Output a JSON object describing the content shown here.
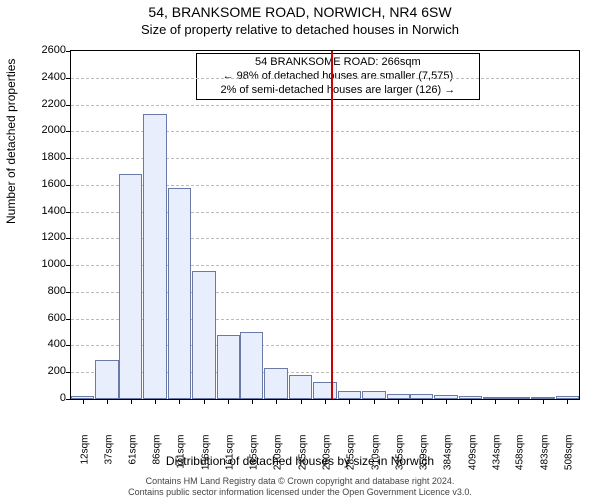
{
  "title_main": "54, BRANKSOME ROAD, NORWICH, NR4 6SW",
  "title_sub": "Size of property relative to detached houses in Norwich",
  "y_axis_label": "Number of detached properties",
  "x_axis_label": "Distribution of detached houses by size in Norwich",
  "footer_line1": "Contains HM Land Registry data © Crown copyright and database right 2024.",
  "footer_line2": "Contains public sector information licensed under the Open Government Licence v3.0.",
  "info_box": {
    "line1": "54 BRANKSOME ROAD: 266sqm",
    "line2": "← 98% of detached houses are smaller (7,575)",
    "line3": "2% of semi-detached houses are larger (126) →"
  },
  "chart": {
    "type": "histogram",
    "background_color": "#ffffff",
    "bar_fill": "#e8eefc",
    "bar_border": "#6a7aa8",
    "grid_color": "#bbbbbb",
    "ref_line_color": "#cc0000",
    "ref_value_x": 266,
    "ylim": [
      0,
      2600
    ],
    "ytick_step": 200,
    "xlim": [
      0,
      520
    ],
    "categories": [
      "12sqm",
      "37sqm",
      "61sqm",
      "86sqm",
      "111sqm",
      "136sqm",
      "161sqm",
      "185sqm",
      "210sqm",
      "235sqm",
      "260sqm",
      "285sqm",
      "310sqm",
      "335sqm",
      "359sqm",
      "384sqm",
      "409sqm",
      "434sqm",
      "458sqm",
      "483sqm",
      "508sqm"
    ],
    "x_positions": [
      12,
      37,
      61,
      86,
      111,
      136,
      161,
      185,
      210,
      235,
      260,
      285,
      310,
      335,
      359,
      384,
      409,
      434,
      458,
      483,
      508
    ],
    "values": [
      20,
      290,
      1680,
      2130,
      1580,
      960,
      480,
      500,
      230,
      180,
      130,
      60,
      60,
      40,
      40,
      30,
      20,
      10,
      10,
      10,
      20
    ],
    "bar_width_data": 24,
    "title_fontsize": 14,
    "subtitle_fontsize": 13,
    "axis_label_fontsize": 12,
    "tick_fontsize": 11,
    "info_fontsize": 11
  }
}
